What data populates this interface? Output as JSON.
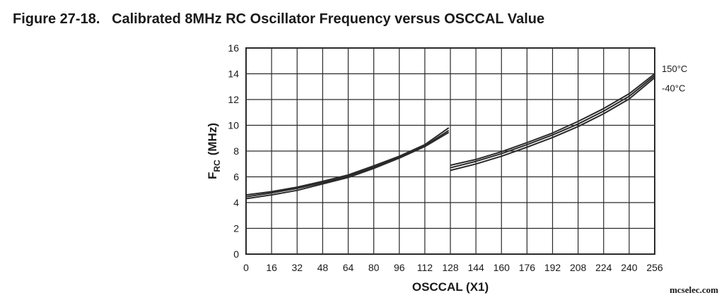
{
  "figure": {
    "number": "Figure 27-18.",
    "title": "Calibrated 8MHz RC Oscillator Frequency versus OSCCAL Value"
  },
  "watermark": "mcselec.com",
  "chart_data": {
    "type": "line",
    "title": "Calibrated 8MHz RC Oscillator Frequency versus OSCCAL Value",
    "xlabel": "OSCCAL (X1)",
    "ylabel": {
      "main": "F",
      "sub": "RC",
      "unit": "(MHz)"
    },
    "xlim": [
      0,
      256
    ],
    "ylim": [
      0,
      16
    ],
    "xticks": [
      0,
      16,
      32,
      48,
      64,
      80,
      96,
      112,
      128,
      144,
      160,
      176,
      192,
      208,
      224,
      240,
      256
    ],
    "yticks": [
      0,
      2,
      4,
      6,
      8,
      10,
      12,
      14,
      16
    ],
    "grid": true,
    "line_color": "#2a2a2a",
    "series": [
      {
        "name": "150°C",
        "segments": [
          {
            "x": [
              0,
              16,
              32,
              48,
              64,
              80,
              96,
              112,
              127
            ],
            "y": [
              4.6,
              4.85,
              5.2,
              5.65,
              6.15,
              6.85,
              7.6,
              8.5,
              9.8
            ]
          },
          {
            "x": [
              128,
              144,
              160,
              176,
              192,
              208,
              224,
              240,
              256
            ],
            "y": [
              6.9,
              7.35,
              7.95,
              8.65,
              9.4,
              10.3,
              11.3,
              12.45,
              14.0
            ]
          }
        ]
      },
      {
        "name": "",
        "segments": [
          {
            "x": [
              0,
              16,
              32,
              48,
              64,
              80,
              96,
              112,
              127
            ],
            "y": [
              4.45,
              4.75,
              5.1,
              5.55,
              6.05,
              6.75,
              7.5,
              8.4,
              9.6
            ]
          },
          {
            "x": [
              128,
              144,
              160,
              176,
              192,
              208,
              224,
              240,
              256
            ],
            "y": [
              6.7,
              7.2,
              7.8,
              8.5,
              9.25,
              10.1,
              11.1,
              12.25,
              13.85
            ]
          }
        ]
      },
      {
        "name": "-40°C",
        "segments": [
          {
            "x": [
              0,
              16,
              32,
              48,
              64,
              80,
              96,
              112,
              127
            ],
            "y": [
              4.3,
              4.6,
              4.95,
              5.45,
              5.95,
              6.65,
              7.45,
              8.35,
              9.45
            ]
          },
          {
            "x": [
              128,
              144,
              160,
              176,
              192,
              208,
              224,
              240,
              256
            ],
            "y": [
              6.5,
              7.0,
              7.6,
              8.3,
              9.05,
              9.9,
              10.9,
              12.05,
              13.7
            ]
          }
        ]
      }
    ],
    "series_labels": [
      {
        "text": "150°C",
        "at_y": 14.4
      },
      {
        "text": "-40°C",
        "at_y": 12.9
      }
    ]
  }
}
